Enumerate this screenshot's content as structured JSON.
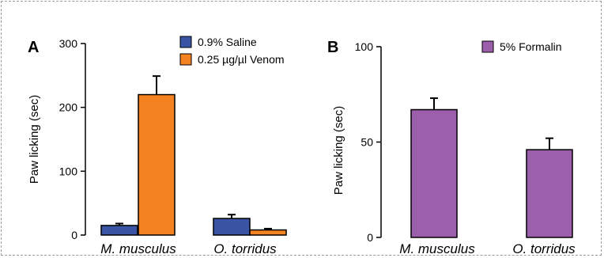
{
  "chart_data": [
    {
      "panel": "A",
      "type": "bar",
      "ylabel": "Paw licking (sec)",
      "ylim": [
        0,
        300
      ],
      "yticks": [
        "0",
        "100",
        "200",
        "300"
      ],
      "categories": [
        "M. musculus",
        "O. torridus"
      ],
      "series": [
        {
          "name": "0.9% Saline",
          "values": [
            15,
            26
          ],
          "errors": [
            3,
            6
          ],
          "color": "#3a55a4"
        },
        {
          "name": "0.25 µg/µl Venom",
          "values": [
            220,
            8
          ],
          "errors": [
            29,
            2
          ],
          "color": "#f58220"
        }
      ],
      "legend": "top-right"
    },
    {
      "panel": "B",
      "type": "bar",
      "ylabel": "Paw licking (sec)",
      "ylim": [
        0,
        100
      ],
      "yticks": [
        "0",
        "50",
        "100"
      ],
      "categories": [
        "M. musculus",
        "O. torridus"
      ],
      "series": [
        {
          "name": "5% Formalin",
          "values": [
            67,
            46
          ],
          "errors": [
            6,
            6
          ],
          "color": "#9b5fab"
        }
      ],
      "legend": "top-right"
    }
  ]
}
